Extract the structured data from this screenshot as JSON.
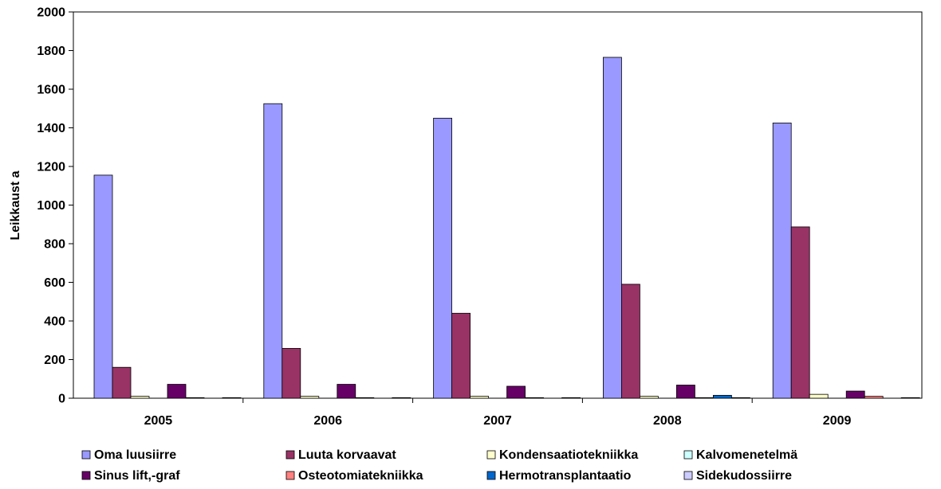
{
  "chart_data": {
    "type": "bar",
    "title": "",
    "xlabel": "",
    "ylabel": "Leikkaust a",
    "ylim": [
      0,
      2000
    ],
    "yticks": [
      0,
      200,
      400,
      600,
      800,
      1000,
      1200,
      1400,
      1600,
      1800,
      2000
    ],
    "grid": false,
    "legend_position": "bottom",
    "categories": [
      "2005",
      "2006",
      "2007",
      "2008",
      "2009"
    ],
    "series": [
      {
        "name": "Oma luusiirre",
        "color": "#9999ff",
        "values": [
          1155,
          1525,
          1450,
          1765,
          1425
        ]
      },
      {
        "name": "Luuta korvaavat",
        "color": "#993366",
        "values": [
          160,
          258,
          440,
          590,
          887
        ]
      },
      {
        "name": "Kondensaatiotekniikka",
        "color": "#ffffcc",
        "values": [
          10,
          10,
          10,
          10,
          20
        ]
      },
      {
        "name": "Kalvomenetelmä",
        "color": "#ccffff",
        "values": [
          0,
          0,
          0,
          0,
          0
        ]
      },
      {
        "name": "Sinus lift,-graf",
        "color": "#660066",
        "values": [
          72,
          72,
          62,
          68,
          37
        ]
      },
      {
        "name": "Osteotomiatekniikka",
        "color": "#ff8080",
        "values": [
          3,
          3,
          3,
          3,
          10
        ]
      },
      {
        "name": "Hermotransplantaatio",
        "color": "#0066cc",
        "values": [
          0,
          0,
          0,
          15,
          0
        ]
      },
      {
        "name": "Sidekudossiirre",
        "color": "#ccccff",
        "values": [
          3,
          3,
          3,
          3,
          3
        ]
      }
    ]
  }
}
